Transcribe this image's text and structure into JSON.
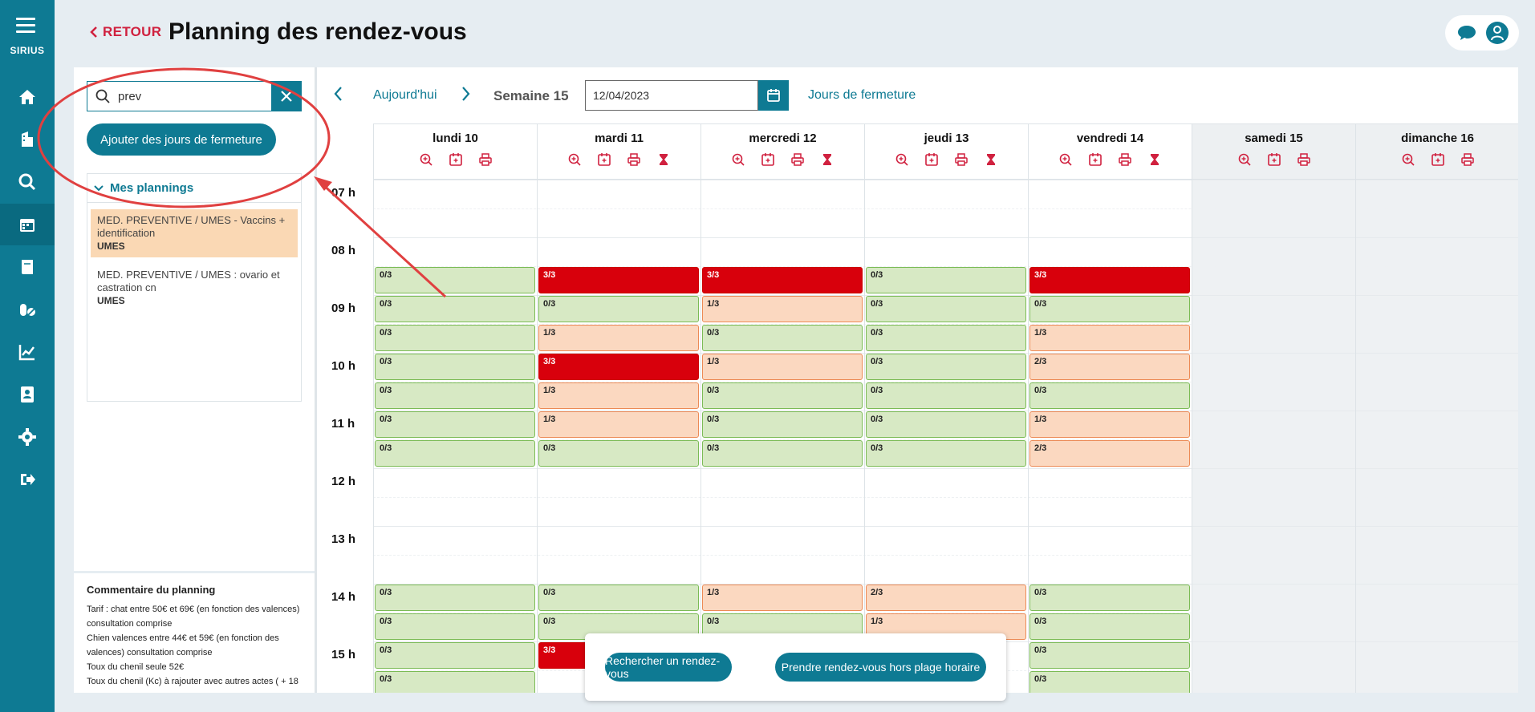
{
  "app": {
    "brand": "SIRIUS"
  },
  "colors": {
    "primary": "#0e7a93",
    "accent_red": "#d0213f",
    "annotation": "#e04040"
  },
  "sidebar": {
    "items": [
      {
        "name": "home-icon"
      },
      {
        "name": "building-icon"
      },
      {
        "name": "search-icon"
      },
      {
        "name": "calendar-icon",
        "active": true
      },
      {
        "name": "book-icon"
      },
      {
        "name": "pills-icon"
      },
      {
        "name": "chart-icon"
      },
      {
        "name": "contact-icon"
      },
      {
        "name": "gear-icon"
      },
      {
        "name": "logout-icon"
      }
    ]
  },
  "header": {
    "back_label": "RETOUR",
    "title": "Planning des rendez-vous"
  },
  "left": {
    "search_value": "prev",
    "add_closure_label": "Ajouter des jours de fermeture",
    "my_plannings_label": "Mes plannings",
    "plannings": [
      {
        "title": "MED. PREVENTIVE / UMES - Vaccins + identification",
        "sub": "UMES",
        "selected": true
      },
      {
        "title": "MED. PREVENTIVE / UMES : ovario et castration cn",
        "sub": "UMES",
        "selected": false
      }
    ],
    "comment": {
      "title": "Commentaire du planning",
      "lines": [
        "Tarif : chat entre 50€ et 69€ (en fonction des valences)",
        "consultation comprise",
        "Chien valences entre 44€ et 59€ (en fonction des",
        "valences) consultation comprise",
        "Toux du chenil seule 52€",
        "Toux du chenil (Kc) à rajouter avec autres actes ( + 18"
      ]
    }
  },
  "toolbar": {
    "today_label": "Aujourd'hui",
    "week_label": "Semaine 15",
    "date_value": "12/04/2023",
    "closure_days_label": "Jours de fermeture"
  },
  "days": [
    {
      "label": "lundi 10",
      "hourglass": false
    },
    {
      "label": "mardi 11",
      "hourglass": true
    },
    {
      "label": "mercredi 12",
      "hourglass": true
    },
    {
      "label": "jeudi 13",
      "hourglass": true
    },
    {
      "label": "vendredi 14",
      "hourglass": true
    },
    {
      "label": "samedi 15",
      "hourglass": false,
      "weekend": true
    },
    {
      "label": "dimanche 16",
      "hourglass": false,
      "weekend": true
    }
  ],
  "hours": [
    "07 h",
    "08 h",
    "09 h",
    "10 h",
    "11 h",
    "12 h",
    "13 h",
    "14 h",
    "15 h"
  ],
  "slot_rows": [
    {
      "row": 3,
      "values": [
        "0/3",
        "3/3",
        "3/3",
        "0/3",
        "3/3"
      ]
    },
    {
      "row": 4,
      "values": [
        "0/3",
        "0/3",
        "1/3",
        "0/3",
        "0/3"
      ]
    },
    {
      "row": 5,
      "values": [
        "0/3",
        "1/3",
        "0/3",
        "0/3",
        "1/3"
      ]
    },
    {
      "row": 6,
      "values": [
        "0/3",
        "3/3",
        "1/3",
        "0/3",
        "2/3"
      ]
    },
    {
      "row": 7,
      "values": [
        "0/3",
        "1/3",
        "0/3",
        "0/3",
        "0/3"
      ]
    },
    {
      "row": 8,
      "values": [
        "0/3",
        "1/3",
        "0/3",
        "0/3",
        "1/3"
      ]
    },
    {
      "row": 9,
      "values": [
        "0/3",
        "0/3",
        "0/3",
        "0/3",
        "2/3"
      ]
    },
    {
      "row": 14,
      "values": [
        "0/3",
        "0/3",
        "1/3",
        "2/3",
        "0/3"
      ]
    },
    {
      "row": 15,
      "values": [
        "0/3",
        "0/3",
        "0/3",
        "1/3",
        "0/3"
      ]
    },
    {
      "row": 16,
      "values": [
        "0/3",
        "3/3",
        "",
        "",
        "0/3"
      ]
    },
    {
      "row": 17,
      "values": [
        "0/3",
        "",
        "",
        "",
        "0/3"
      ]
    }
  ],
  "bottom": {
    "search_appt_label": "Rechercher un rendez-vous",
    "out_of_hours_label": "Prendre rendez-vous hors plage horaire"
  }
}
